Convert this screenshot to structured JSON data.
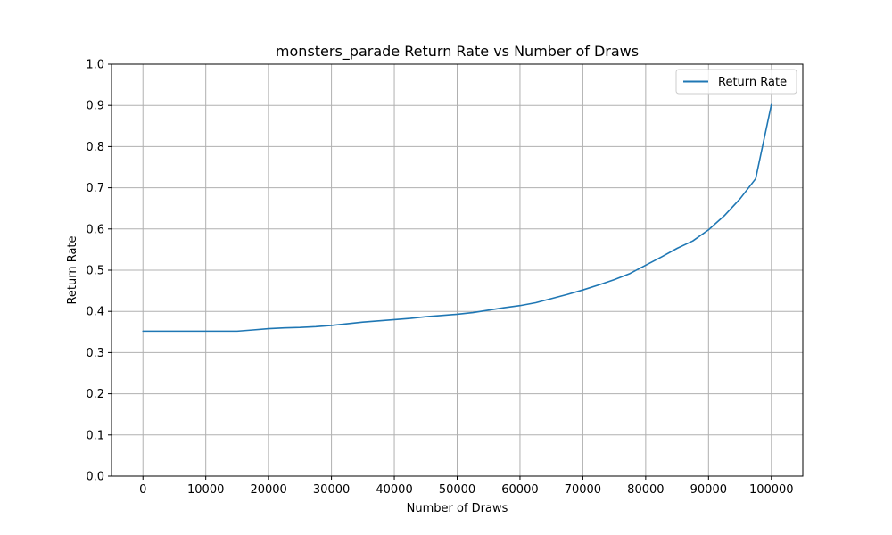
{
  "chart_data": {
    "type": "line",
    "title": "monsters_parade Return Rate vs Number of Draws",
    "xlabel": "Number of Draws",
    "ylabel": "Return Rate",
    "xlim": [
      -5000,
      105000
    ],
    "ylim": [
      0.0,
      1.0
    ],
    "x_ticks": [
      0,
      10000,
      20000,
      30000,
      40000,
      50000,
      60000,
      70000,
      80000,
      90000,
      100000
    ],
    "x_tick_labels": [
      "0",
      "10000",
      "20000",
      "30000",
      "40000",
      "50000",
      "60000",
      "70000",
      "80000",
      "90000",
      "100000"
    ],
    "y_ticks": [
      0.0,
      0.1,
      0.2,
      0.3,
      0.4,
      0.5,
      0.6,
      0.7,
      0.8,
      0.9,
      1.0
    ],
    "y_tick_labels": [
      "0.0",
      "0.1",
      "0.2",
      "0.3",
      "0.4",
      "0.5",
      "0.6",
      "0.7",
      "0.8",
      "0.9",
      "1.0"
    ],
    "grid": true,
    "legend_position": "top-right",
    "series": [
      {
        "name": "Return Rate",
        "color": "#1f77b4",
        "x": [
          0,
          5000,
          10000,
          15000,
          17500,
          20000,
          22500,
          25000,
          27500,
          30000,
          32500,
          35000,
          37500,
          40000,
          42500,
          45000,
          47500,
          50000,
          52500,
          55000,
          57500,
          60000,
          62500,
          65000,
          67500,
          70000,
          72500,
          75000,
          77500,
          80000,
          82500,
          85000,
          87500,
          90000,
          92500,
          95000,
          97500,
          100000
        ],
        "values": [
          0.352,
          0.352,
          0.352,
          0.352,
          0.355,
          0.358,
          0.36,
          0.361,
          0.363,
          0.366,
          0.37,
          0.374,
          0.377,
          0.38,
          0.383,
          0.387,
          0.39,
          0.393,
          0.397,
          0.403,
          0.409,
          0.414,
          0.421,
          0.431,
          0.441,
          0.452,
          0.464,
          0.477,
          0.492,
          0.512,
          0.532,
          0.553,
          0.571,
          0.598,
          0.632,
          0.673,
          0.722,
          0.902
        ]
      }
    ]
  }
}
